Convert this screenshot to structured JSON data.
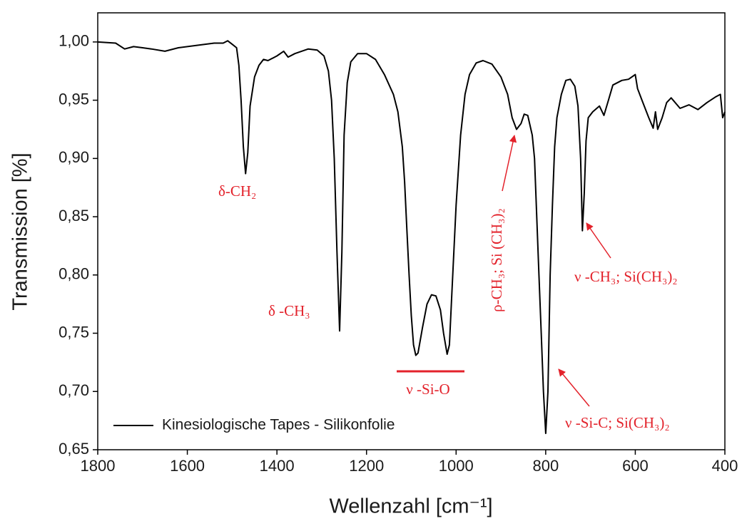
{
  "chart_data": {
    "type": "line",
    "x_label": "Wellenzahl [cm⁻¹]",
    "y_label": "Transmission [%]",
    "xlim": [
      1800,
      400
    ],
    "ylim": [
      0.65,
      1.025
    ],
    "xticks": [
      1800,
      1600,
      1400,
      1200,
      1000,
      800,
      600,
      400
    ],
    "yticks": [
      {
        "value": 0.65,
        "label": "0,65"
      },
      {
        "value": 0.7,
        "label": "0,70"
      },
      {
        "value": 0.75,
        "label": "0,75"
      },
      {
        "value": 0.8,
        "label": "0,80"
      },
      {
        "value": 0.85,
        "label": "0,85"
      },
      {
        "value": 0.9,
        "label": "0,90"
      },
      {
        "value": 0.95,
        "label": "0,95"
      },
      {
        "value": 1.0,
        "label": "1,00"
      }
    ],
    "legend": "lower left",
    "annotations": [
      "δ-CH₂",
      "δ -CH₃",
      "ν -Si-O",
      "ρ-CH₃; Si (CH₃)₂",
      "ν -CH₃; Si(CH₃)₂",
      "ν -Si-C; Si(CH₃)₂"
    ],
    "x": [
      1800,
      1760,
      1740,
      1720,
      1700,
      1680,
      1650,
      1620,
      1580,
      1540,
      1520,
      1510,
      1500,
      1490,
      1485,
      1480,
      1475,
      1470,
      1465,
      1460,
      1450,
      1440,
      1430,
      1420,
      1400,
      1385,
      1375,
      1360,
      1330,
      1310,
      1295,
      1285,
      1278,
      1272,
      1266,
      1260,
      1255,
      1250,
      1243,
      1235,
      1220,
      1200,
      1180,
      1160,
      1140,
      1130,
      1120,
      1115,
      1110,
      1105,
      1100,
      1095,
      1090,
      1085,
      1075,
      1065,
      1055,
      1045,
      1035,
      1028,
      1020,
      1015,
      1010,
      1000,
      990,
      980,
      970,
      955,
      940,
      920,
      900,
      885,
      875,
      865,
      855,
      848,
      840,
      830,
      825,
      820,
      815,
      810,
      805,
      800,
      795,
      790,
      785,
      780,
      775,
      765,
      755,
      745,
      735,
      728,
      722,
      718,
      714,
      710,
      705,
      695,
      680,
      670,
      660,
      650,
      630,
      615,
      600,
      595,
      585,
      570,
      560,
      555,
      550,
      540,
      530,
      520,
      500,
      480,
      460,
      440,
      420,
      410,
      405,
      400
    ],
    "series": [
      {
        "name": "Kinesiologische Tapes - Silikonfolie",
        "color": "#000000",
        "values": [
          1.0,
          0.999,
          0.994,
          0.996,
          0.995,
          0.994,
          0.992,
          0.995,
          0.997,
          0.999,
          0.999,
          1.001,
          0.998,
          0.995,
          0.98,
          0.95,
          0.91,
          0.887,
          0.905,
          0.945,
          0.97,
          0.98,
          0.985,
          0.984,
          0.988,
          0.992,
          0.987,
          0.99,
          0.994,
          0.993,
          0.988,
          0.975,
          0.95,
          0.9,
          0.82,
          0.752,
          0.82,
          0.92,
          0.965,
          0.983,
          0.99,
          0.99,
          0.985,
          0.972,
          0.955,
          0.94,
          0.91,
          0.88,
          0.84,
          0.8,
          0.765,
          0.74,
          0.731,
          0.733,
          0.755,
          0.775,
          0.783,
          0.782,
          0.77,
          0.75,
          0.732,
          0.74,
          0.78,
          0.86,
          0.92,
          0.955,
          0.972,
          0.982,
          0.984,
          0.981,
          0.97,
          0.955,
          0.935,
          0.925,
          0.93,
          0.938,
          0.937,
          0.92,
          0.9,
          0.85,
          0.8,
          0.75,
          0.7,
          0.664,
          0.7,
          0.8,
          0.86,
          0.91,
          0.935,
          0.955,
          0.967,
          0.968,
          0.962,
          0.945,
          0.9,
          0.838,
          0.87,
          0.915,
          0.935,
          0.94,
          0.945,
          0.937,
          0.95,
          0.963,
          0.967,
          0.968,
          0.972,
          0.96,
          0.95,
          0.935,
          0.926,
          0.94,
          0.925,
          0.935,
          0.948,
          0.952,
          0.943,
          0.946,
          0.942,
          0.948,
          0.953,
          0.955,
          0.935,
          0.94
        ]
      }
    ]
  }
}
